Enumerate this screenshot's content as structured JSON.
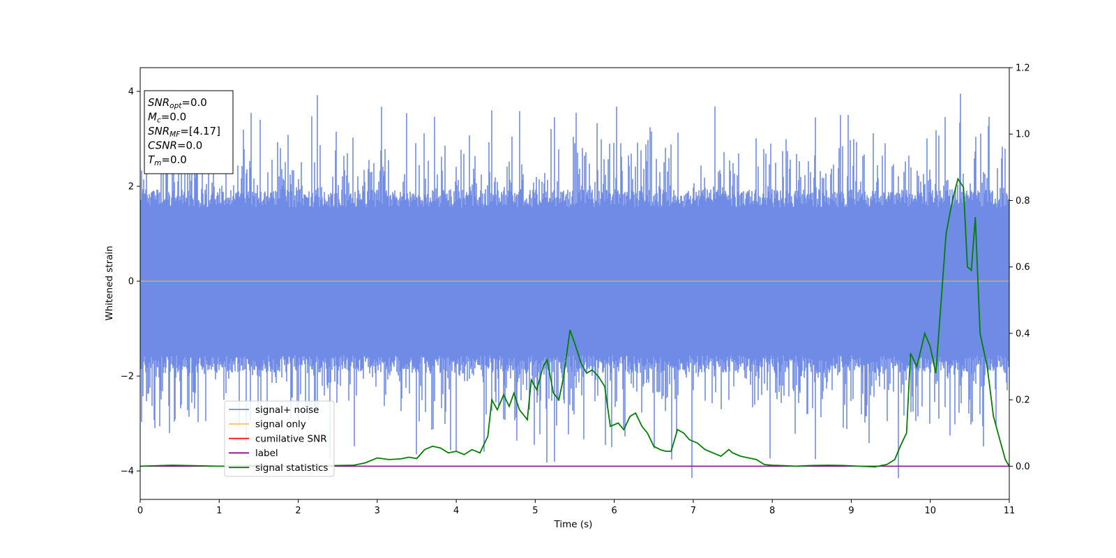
{
  "chart_data": {
    "type": "line",
    "xlabel": "Time (s)",
    "ylabel": "Whitened strain",
    "xlim": [
      0,
      11
    ],
    "ylim_left": [
      -4.6,
      4.5
    ],
    "ylim_right": [
      -0.1,
      1.2
    ],
    "x_ticks": [
      0,
      1,
      2,
      3,
      4,
      5,
      6,
      7,
      8,
      9,
      10,
      11
    ],
    "y_ticks_left": [
      -4,
      -2,
      0,
      2,
      4
    ],
    "y_ticks_right": [
      "0.0",
      "0.2",
      "0.4",
      "0.6",
      "0.8",
      "1.0",
      "1.2"
    ],
    "grid": false,
    "legend_placement": "lower-left",
    "info_box": [
      {
        "sym": "SNR",
        "sub": "opt",
        "rest": "=0.0"
      },
      {
        "sym": "M",
        "sub": "c",
        "rest": "=0.0"
      },
      {
        "sym": "SNR",
        "sub": "MF",
        "rest": "=[4.17]"
      },
      {
        "sym": "CSNR",
        "sub": "",
        "rest": "=0.0"
      },
      {
        "sym": "T",
        "sub": "m",
        "rest": "=0.0"
      }
    ],
    "series": [
      {
        "name": "signal+ noise",
        "axis": "left",
        "color": "#6f8be6",
        "kind": "noise",
        "typical_range": [
          -1.9,
          1.9
        ],
        "extreme_range": [
          -4.15,
          3.95
        ],
        "peaks": [
          [
            10.38,
            3.95
          ],
          [
            0.42,
            3.3
          ],
          [
            1.52,
            3.4
          ],
          [
            4.45,
            3.6
          ],
          [
            5.52,
            3.55
          ],
          [
            8.55,
            3.45
          ]
        ],
        "dips": [
          [
            6.98,
            -4.15
          ],
          [
            9.6,
            -4.15
          ],
          [
            3.5,
            -3.65
          ],
          [
            4.0,
            -3.6
          ],
          [
            8.55,
            -3.75
          ]
        ]
      },
      {
        "name": "signal only",
        "axis": "left",
        "color": "#f5c46c",
        "x": [
          0,
          11
        ],
        "y": [
          0,
          0
        ]
      },
      {
        "name": "cumilative SNR",
        "axis": "right",
        "color": "#ff0000",
        "x": [
          0,
          11
        ],
        "y": [
          0,
          0
        ]
      },
      {
        "name": "label",
        "axis": "right",
        "color": "#800080",
        "x": [
          0,
          11
        ],
        "y": [
          0,
          0
        ]
      },
      {
        "name": "signal statistics",
        "axis": "right",
        "color": "#008000",
        "x": [
          0,
          0.4,
          1.0,
          1.5,
          2.0,
          2.5,
          2.7,
          2.85,
          3.0,
          3.15,
          3.3,
          3.4,
          3.5,
          3.6,
          3.7,
          3.8,
          3.9,
          4.0,
          4.1,
          4.2,
          4.3,
          4.4,
          4.45,
          4.52,
          4.6,
          4.67,
          4.73,
          4.8,
          4.9,
          4.95,
          5.02,
          5.1,
          5.15,
          5.23,
          5.3,
          5.36,
          5.44,
          5.5,
          5.58,
          5.65,
          5.72,
          5.8,
          5.88,
          5.95,
          6.05,
          6.12,
          6.2,
          6.27,
          6.35,
          6.42,
          6.5,
          6.58,
          6.65,
          6.72,
          6.8,
          6.88,
          6.95,
          7.05,
          7.15,
          7.25,
          7.35,
          7.45,
          7.5,
          7.6,
          7.7,
          7.8,
          7.9,
          8.0,
          8.1,
          8.3,
          8.5,
          8.7,
          8.9,
          9.1,
          9.3,
          9.45,
          9.55,
          9.62,
          9.7,
          9.75,
          9.83,
          9.93,
          10.0,
          10.07,
          10.2,
          10.28,
          10.35,
          10.42,
          10.47,
          10.52,
          10.57,
          10.63,
          10.72,
          10.8,
          10.88,
          10.95,
          11.0
        ],
        "y": [
          0.0,
          0.003,
          0.0,
          0.002,
          0.0,
          0.002,
          0.003,
          0.01,
          0.025,
          0.02,
          0.022,
          0.027,
          0.023,
          0.05,
          0.06,
          0.055,
          0.04,
          0.045,
          0.035,
          0.05,
          0.04,
          0.09,
          0.2,
          0.17,
          0.215,
          0.18,
          0.22,
          0.17,
          0.14,
          0.26,
          0.23,
          0.3,
          0.32,
          0.22,
          0.2,
          0.27,
          0.41,
          0.37,
          0.31,
          0.28,
          0.29,
          0.27,
          0.24,
          0.12,
          0.13,
          0.11,
          0.15,
          0.16,
          0.12,
          0.1,
          0.06,
          0.05,
          0.045,
          0.045,
          0.11,
          0.1,
          0.08,
          0.07,
          0.05,
          0.04,
          0.03,
          0.05,
          0.04,
          0.03,
          0.025,
          0.02,
          0.005,
          0.003,
          0.002,
          0.0,
          0.002,
          0.003,
          0.002,
          0.0,
          -0.002,
          0.005,
          0.02,
          0.06,
          0.1,
          0.34,
          0.3,
          0.4,
          0.36,
          0.28,
          0.7,
          0.8,
          0.865,
          0.84,
          0.6,
          0.59,
          0.75,
          0.4,
          0.3,
          0.15,
          0.08,
          0.02,
          0.0
        ]
      }
    ]
  }
}
